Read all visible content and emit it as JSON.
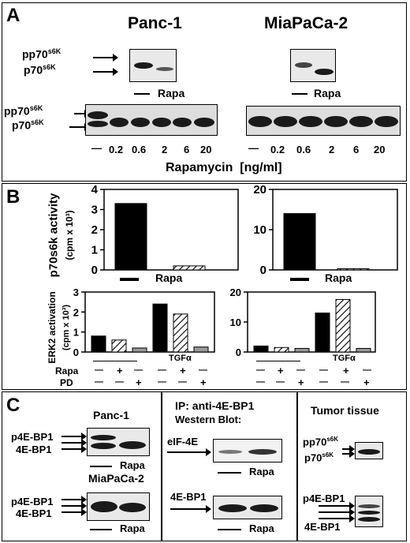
{
  "panel_a": {
    "letter": "A",
    "cell_lines": [
      "Panc-1",
      "MiaPaCa-2"
    ],
    "pp70": "pp70",
    "p70": "p70",
    "sup": "s6K",
    "dash": "—",
    "rapa": "Rapa",
    "doses": [
      "—",
      "0.2",
      "0.6",
      "2",
      "6",
      "20"
    ],
    "axis_label": "Rapamycin",
    "unit": "[ng/ml]"
  },
  "panel_b": {
    "letter": "B",
    "top_ylabel": "p70s6k activity",
    "top_yunit": "(cpm x 10³)",
    "bottom_ylabel": "ERK2 activation",
    "bottom_yunit": "(cpm x 10³)",
    "rapa": "Rapa",
    "pd": "PD",
    "tgf": "TGFα",
    "plus": "+",
    "minus": "—"
  },
  "panel_c": {
    "letter": "C",
    "panc": "Panc-1",
    "mia": "MiaPaCa-2",
    "p4e": "p4E-BP1",
    "e4": "4E-BP1",
    "ip_title": "IP: anti-4E-BP1",
    "wb": "Western Blot:",
    "eif": "eIF-4E",
    "tumor": "Tumor tissue",
    "pp70": "pp70",
    "p70": "p70",
    "sup": "s6K",
    "rapa": "Rapa"
  },
  "chart_data": [
    {
      "type": "bar",
      "categories": [
        "—",
        "Rapa"
      ],
      "values": [
        3.3,
        0.2
      ],
      "ylim": [
        0,
        4
      ],
      "yticks": [
        0,
        1,
        2,
        3,
        4
      ],
      "colors": [
        "#000000",
        "hatched"
      ]
    },
    {
      "type": "bar",
      "categories": [
        "—",
        "Rapa"
      ],
      "values": [
        14,
        0.3
      ],
      "ylim": [
        0,
        20
      ],
      "yticks": [
        0,
        10,
        20
      ],
      "colors": [
        "#000000",
        "hatched"
      ]
    },
    {
      "type": "bar",
      "values": [
        0.8,
        0.6,
        0.2,
        2.4,
        1.9,
        0.25
      ],
      "ylim": [
        0,
        3
      ],
      "yticks": [
        0,
        1,
        2,
        3
      ],
      "colors": [
        "#000000",
        "hatched",
        "#999999",
        "#000000",
        "hatched",
        "#999999"
      ]
    },
    {
      "type": "bar",
      "values": [
        2,
        1.5,
        1.2,
        13,
        17.5,
        1.2
      ],
      "ylim": [
        0,
        20
      ],
      "yticks": [
        0,
        10,
        20
      ],
      "colors": [
        "#000000",
        "hatched",
        "#999999",
        "#000000",
        "hatched",
        "#999999"
      ]
    }
  ]
}
